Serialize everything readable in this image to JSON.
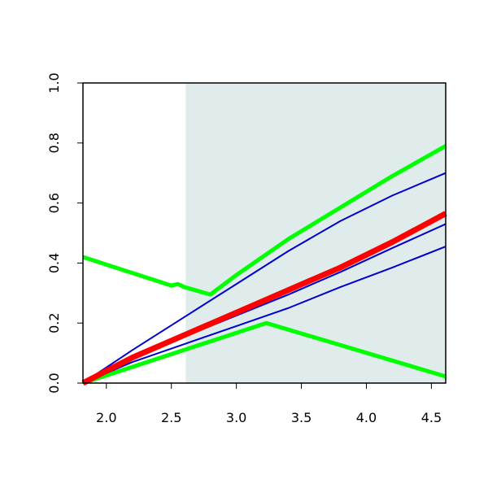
{
  "chart_data": {
    "type": "line",
    "xlim": [
      1.82,
      4.61
    ],
    "ylim": [
      0,
      1
    ],
    "xticks": [
      {
        "value": 2,
        "label": "2.0"
      },
      2.5,
      {
        "value": 3,
        "label": "3.0"
      },
      3.5,
      {
        "value": 4,
        "label": "4.0"
      },
      4.5
    ],
    "yticks": [
      {
        "value": 0,
        "label": "0.0"
      },
      0.2,
      0.4,
      0.6,
      0.8,
      {
        "value": 1,
        "label": "1.0"
      }
    ],
    "shaded_xrange": [
      2.61,
      4.61
    ],
    "shade_color": "#dfeceb",
    "series": [
      {
        "color": "#00ff00",
        "line_width": 5,
        "x": [
          1.82,
          2.5,
          2.55,
          2.6,
          2.8,
          3.0,
          3.4,
          3.8,
          4.2,
          4.61
        ],
        "values": [
          0.42,
          0.325,
          0.33,
          0.32,
          0.295,
          0.36,
          0.48,
          0.585,
          0.69,
          0.79
        ]
      },
      {
        "color": "#00ff00",
        "line_width": 5,
        "x": [
          1.82,
          3.23,
          4.61
        ],
        "values": [
          0,
          0.2,
          0.022
        ]
      },
      {
        "color": "#0000cd",
        "line_width": 2,
        "x": [
          1.82,
          2.2,
          2.6,
          3.0,
          3.4,
          3.8,
          4.2,
          4.61
        ],
        "values": [
          0,
          0.11,
          0.22,
          0.33,
          0.44,
          0.54,
          0.625,
          0.7
        ]
      },
      {
        "color": "#0000cd",
        "line_width": 2,
        "x": [
          1.82,
          2.2,
          2.6,
          3.0,
          3.4,
          3.8,
          4.2,
          4.61
        ],
        "values": [
          0,
          0.08,
          0.155,
          0.225,
          0.295,
          0.37,
          0.45,
          0.53
        ]
      },
      {
        "color": "#0000cd",
        "line_width": 2,
        "x": [
          1.82,
          2.2,
          2.6,
          3.0,
          3.4,
          3.8,
          4.2,
          4.61
        ],
        "values": [
          0,
          0.07,
          0.13,
          0.19,
          0.25,
          0.32,
          0.385,
          0.455
        ]
      },
      {
        "color": "#ff0000",
        "line_width": 7,
        "x": [
          1.82,
          2.2,
          2.6,
          3.0,
          3.4,
          3.8,
          4.2,
          4.61
        ],
        "values": [
          0,
          0.085,
          0.16,
          0.235,
          0.31,
          0.385,
          0.47,
          0.565
        ]
      }
    ]
  }
}
